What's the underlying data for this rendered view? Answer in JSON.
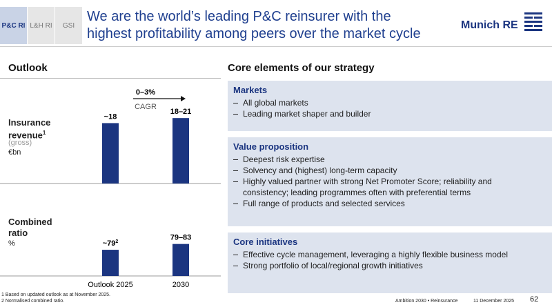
{
  "header": {
    "tabs": [
      "P&C RI",
      "L&H RI",
      "GSI"
    ],
    "title_lines": [
      "We are the world’s leading P&C reinsurer with the",
      "highest profitability among peers over the market cycle"
    ],
    "logo": "Munich RE"
  },
  "outlook": {
    "heading": "Outlook",
    "revenue_label": "Insurance revenue",
    "revenue_note": "1",
    "revenue_sub": "(gross)",
    "revenue_unit": "€bn",
    "ratio_label_lines": [
      "Combined",
      "ratio"
    ],
    "ratio_unit": "%"
  },
  "chart_data": [
    {
      "type": "bar",
      "categories": [
        "Outlook 2025",
        "2030"
      ],
      "values": [
        18,
        19.5
      ],
      "value_labels": [
        "~18",
        "18–21"
      ],
      "color": "#1b3580",
      "ylim": [
        0,
        22
      ],
      "annotation": "0–3%",
      "annotation_sub": "CAGR"
    },
    {
      "type": "bar",
      "categories": [
        "Outlook 2025",
        "2030"
      ],
      "values": [
        79,
        81
      ],
      "value_labels": [
        "~79",
        "79–83"
      ],
      "value_notes": [
        "2",
        null
      ],
      "color": "#1b3580",
      "ylim": [
        70,
        84
      ]
    }
  ],
  "strategy": {
    "heading": "Core elements of our strategy",
    "sections": [
      {
        "title": "Markets",
        "items": [
          "All global markets",
          "Leading market shaper and builder"
        ]
      },
      {
        "title": "Value proposition",
        "items": [
          "Deepest risk expertise",
          "Solvency and (highest) long-term capacity",
          "Highly valued partner with strong Net Promoter Score; reliability and consistency; leading programmes often with preferential terms",
          "Full range of products and selected services"
        ]
      },
      {
        "title": "Core initiatives",
        "items": [
          "Effective cycle management, leveraging a highly flexible business model",
          "Strong portfolio of local/regional growth initiatives"
        ]
      }
    ]
  },
  "footer": {
    "footnotes": [
      "1 Based on updated outlook as at November 2025.",
      "2 Normalised combined ratio."
    ],
    "event": "Ambition 2030 • Reinsurance",
    "date": "11 December 2025",
    "page": "62"
  }
}
